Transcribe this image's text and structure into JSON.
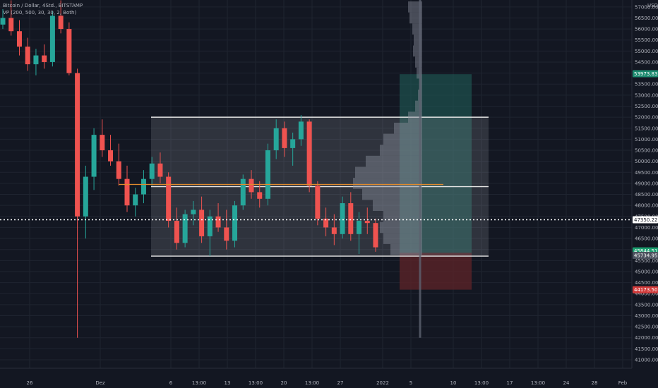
{
  "chart_data": {
    "type": "candlestick",
    "symbol_line": "Bitcoin / Dollar, 4Std., BITSTAMP",
    "indicator_line": "VP (200, 500, 30, 30, 2, Both)",
    "currency": "USD",
    "ylim": [
      41000,
      57250
    ],
    "y_ticks": [
      41000,
      41500,
      42000,
      42500,
      43000,
      43500,
      44000,
      44500,
      45000,
      45500,
      46000,
      46500,
      47000,
      47500,
      48000,
      48500,
      49000,
      49500,
      50000,
      50500,
      51000,
      51500,
      52000,
      52500,
      53000,
      53500,
      54000,
      54500,
      55000,
      55500,
      56000,
      56500,
      57000
    ],
    "x_ticks": [
      {
        "label": "26",
        "x": 0
      },
      {
        "label": "Dez",
        "x": 5
      },
      {
        "label": "6",
        "x": 10
      },
      {
        "label": "13:00",
        "x": 12
      },
      {
        "label": "13",
        "x": 14
      },
      {
        "label": "13:00",
        "x": 16
      },
      {
        "label": "20",
        "x": 18
      },
      {
        "label": "13:00",
        "x": 20
      },
      {
        "label": "27",
        "x": 22
      },
      {
        "label": "2022",
        "x": 25
      },
      {
        "label": "5",
        "x": 27
      },
      {
        "label": "10",
        "x": 30
      },
      {
        "label": "13:00",
        "x": 32
      },
      {
        "label": "17",
        "x": 34
      },
      {
        "label": "13:00",
        "x": 36
      },
      {
        "label": "24",
        "x": 38
      },
      {
        "label": "28",
        "x": 40
      },
      {
        "label": "Feb",
        "x": 42
      }
    ],
    "range_box": {
      "top": 52000,
      "bottom": 45700,
      "mid": 48850,
      "x0": 8.6,
      "x1": 32.5
    },
    "orange_line": {
      "price": 48950,
      "x0": 6.3,
      "x1": 29.3
    },
    "target_zone": {
      "top": 53950,
      "bottom": 45850,
      "x0": 26.2,
      "x1": 31.3
    },
    "stop_zone": {
      "top": 45850,
      "bottom": 44180,
      "x0": 26.2,
      "x1": 31.3
    },
    "current_price_line": 47350,
    "price_labels": [
      {
        "text": "53973.83",
        "price": 53970,
        "bg": "#1b8a6e"
      },
      {
        "text": "47350.22",
        "price": 47350,
        "bg": "#ffffff"
      },
      {
        "text": "45844.51",
        "price": 45940,
        "bg": "#1b9e6f"
      },
      {
        "text": "45734.95",
        "price": 45735,
        "bg": "#4c525e"
      },
      {
        "text": "44173.50",
        "price": 44175,
        "bg": "#d13b3b"
      }
    ],
    "volume_profile_levels": [
      57000,
      56500,
      56000,
      55500,
      55000,
      54500,
      54000,
      53500,
      53000,
      52500,
      52000,
      51500,
      51000,
      50500,
      50000,
      49500,
      49000,
      48500,
      48000,
      47500,
      47000,
      46500,
      46000
    ],
    "volume_profile_widths": [
      20,
      18,
      14,
      12,
      13,
      10,
      8,
      4,
      6,
      10,
      20,
      40,
      55,
      60,
      80,
      95,
      98,
      85,
      70,
      55,
      60,
      55,
      45
    ],
    "candles": [
      [
        56200,
        56900,
        56000,
        56500
      ],
      [
        56500,
        57300,
        55700,
        55900
      ],
      [
        55900,
        56400,
        54800,
        55200
      ],
      [
        55200,
        55600,
        54100,
        54400
      ],
      [
        54400,
        55100,
        53900,
        54800
      ],
      [
        54800,
        55300,
        54200,
        54500
      ],
      [
        54500,
        56800,
        54300,
        56600
      ],
      [
        56600,
        57300,
        55800,
        56000
      ],
      [
        56000,
        56300,
        53900,
        54000
      ],
      [
        54000,
        54200,
        42000,
        47500
      ],
      [
        47500,
        49800,
        46500,
        49300
      ],
      [
        49300,
        51500,
        48700,
        51200
      ],
      [
        51200,
        51900,
        50200,
        50500
      ],
      [
        50500,
        51200,
        49800,
        50000
      ],
      [
        50000,
        50800,
        48900,
        49200
      ],
      [
        49200,
        49800,
        47700,
        48000
      ],
      [
        48000,
        48800,
        47500,
        48500
      ],
      [
        48500,
        49600,
        48100,
        49200
      ],
      [
        49200,
        50200,
        48900,
        49900
      ],
      [
        49900,
        50400,
        49000,
        49300
      ],
      [
        49300,
        49500,
        47000,
        47300
      ],
      [
        47300,
        47900,
        46000,
        46300
      ],
      [
        46300,
        47800,
        46100,
        47600
      ],
      [
        47600,
        48200,
        47100,
        47800
      ],
      [
        47800,
        48400,
        46300,
        46600
      ],
      [
        46600,
        47800,
        45700,
        47500
      ],
      [
        47500,
        48100,
        46800,
        47000
      ],
      [
        47000,
        47800,
        46000,
        46400
      ],
      [
        46400,
        48200,
        46100,
        48000
      ],
      [
        48000,
        49400,
        47800,
        49200
      ],
      [
        49200,
        49600,
        48300,
        48600
      ],
      [
        48600,
        49100,
        47900,
        48300
      ],
      [
        48300,
        50800,
        48000,
        50500
      ],
      [
        50500,
        51900,
        50100,
        51500
      ],
      [
        51500,
        51800,
        50200,
        50600
      ],
      [
        50600,
        51300,
        49800,
        51000
      ],
      [
        51000,
        52100,
        50700,
        51800
      ],
      [
        51800,
        51900,
        48600,
        48900
      ],
      [
        48900,
        49100,
        47100,
        47400
      ],
      [
        47400,
        47900,
        46600,
        47000
      ],
      [
        47000,
        47600,
        46200,
        46700
      ],
      [
        46700,
        48400,
        46500,
        48100
      ],
      [
        48100,
        48600,
        46400,
        46700
      ],
      [
        46700,
        47700,
        45800,
        47300
      ],
      [
        47300,
        47900,
        46700,
        47200
      ],
      [
        47200,
        47400,
        45900,
        46100
      ]
    ]
  }
}
